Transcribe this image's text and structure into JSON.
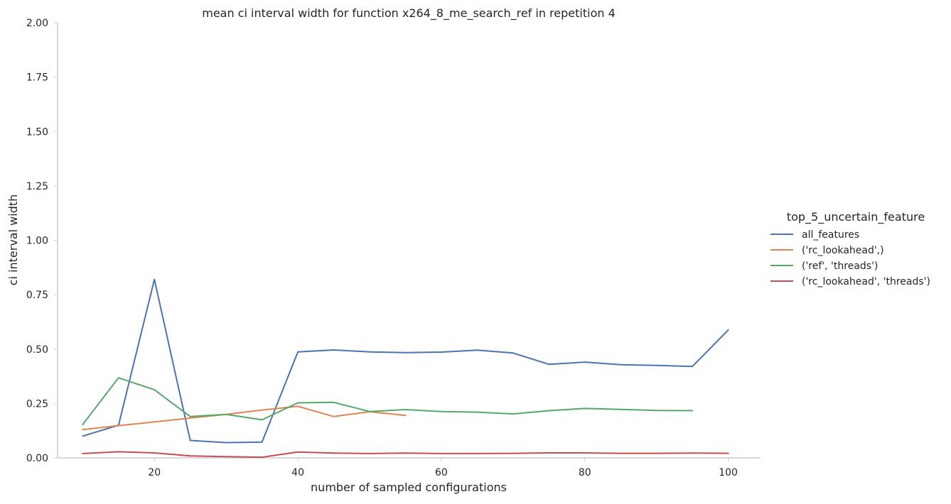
{
  "chart_data": {
    "type": "line",
    "title": "mean ci interval width for function x264_8_me_search_ref in repetition 4",
    "xlabel": "number of sampled configurations",
    "ylabel": "ci interval width",
    "xlim": [
      6.5,
      104.5
    ],
    "ylim": [
      0,
      2.0
    ],
    "xticks": [
      20,
      40,
      60,
      80,
      100
    ],
    "yticks": [
      0.0,
      0.25,
      0.5,
      0.75,
      1.0,
      1.25,
      1.5,
      1.75,
      2.0
    ],
    "ytick_labels": [
      "0.00",
      "0.25",
      "0.50",
      "0.75",
      "1.00",
      "1.25",
      "1.50",
      "1.75",
      "2.00"
    ],
    "grid": false,
    "legend": {
      "title": "top_5_uncertain_feature",
      "placement": "right"
    },
    "series": [
      {
        "name": "all_features",
        "color": "#4c72b0",
        "x": [
          10,
          15,
          20,
          25,
          30,
          35,
          40,
          45,
          50,
          55,
          60,
          65,
          70,
          75,
          80,
          85,
          90,
          95,
          100
        ],
        "y": [
          0.1,
          0.15,
          0.82,
          0.08,
          0.07,
          0.072,
          0.487,
          0.496,
          0.487,
          0.484,
          0.486,
          0.495,
          0.482,
          0.43,
          0.44,
          0.428,
          0.425,
          0.42,
          0.588
        ]
      },
      {
        "name": "('rc_lookahead',)",
        "color": "#dd8452",
        "x": [
          10,
          15,
          20,
          25,
          30,
          35,
          40,
          45,
          50,
          55
        ],
        "y": [
          0.13,
          0.148,
          0.165,
          0.183,
          0.2,
          0.22,
          0.237,
          0.19,
          0.212,
          0.195
        ]
      },
      {
        "name": "('ref', 'threads')",
        "color": "#55a868",
        "x": [
          10,
          15,
          20,
          25,
          30,
          35,
          40,
          45,
          50,
          55,
          60,
          65,
          70,
          75,
          80,
          85,
          90,
          95
        ],
        "y": [
          0.153,
          0.368,
          0.313,
          0.19,
          0.2,
          0.175,
          0.253,
          0.255,
          0.213,
          0.222,
          0.213,
          0.21,
          0.202,
          0.217,
          0.227,
          0.223,
          0.218,
          0.217
        ]
      },
      {
        "name": "('rc_lookahead', 'threads')",
        "color": "#c44e52",
        "x": [
          10,
          15,
          20,
          25,
          30,
          35,
          40,
          45,
          50,
          55,
          60,
          65,
          70,
          75,
          80,
          85,
          90,
          95,
          100
        ],
        "y": [
          0.02,
          0.028,
          0.023,
          0.009,
          0.006,
          0.003,
          0.027,
          0.022,
          0.02,
          0.022,
          0.02,
          0.02,
          0.021,
          0.023,
          0.023,
          0.021,
          0.021,
          0.022,
          0.021
        ]
      }
    ]
  }
}
